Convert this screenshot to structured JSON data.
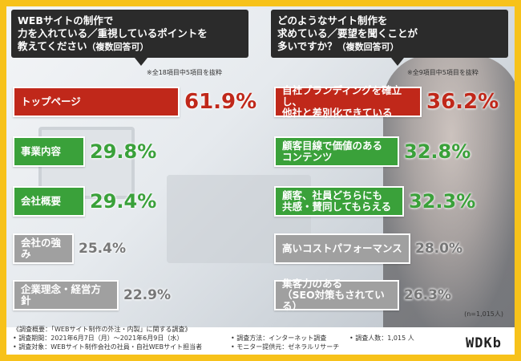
{
  "colors": {
    "top": "#c0281a",
    "high": "#3aa13a",
    "low": "#a0a0a0",
    "frame": "#f7c21a"
  },
  "left_panel": {
    "question": "WEBサイトの制作で\n力を入れている／重視しているポイントを\n教えてください",
    "question_suffix": "（複数回答可）",
    "note": "※全18項目中5項目を抜粋"
  },
  "right_panel": {
    "question": "どのようなサイト制作を\n求めている／要望を聞くことが\n多いですか？",
    "question_suffix": "（複数回答可）",
    "note": "※全9項目中5項目を抜粋"
  },
  "chart_data": [
    {
      "type": "bar",
      "categories": [
        "トップページ",
        "事業内容",
        "会社概要",
        "会社の強み",
        "企業理念・経営方針"
      ],
      "values": [
        61.9,
        29.8,
        29.4,
        25.4,
        22.9
      ],
      "value_labels": [
        "61.9%",
        "29.8%",
        "29.4%",
        "25.4%",
        "22.9%"
      ]
    },
    {
      "type": "bar",
      "categories": [
        "自社ブランディングを確立し、\n他社と差別化できている",
        "顧客目線で価値のある\nコンテンツ",
        "顧客、社員どちらにも\n共感・賛同してもらえる",
        "高いコストパフォーマンス",
        "集客力のある\n（SEO対策もされている）"
      ],
      "values": [
        36.2,
        32.8,
        32.3,
        28.0,
        26.3
      ],
      "value_labels": [
        "36.2%",
        "32.8%",
        "32.3%",
        "28.0%",
        "26.3%"
      ]
    }
  ],
  "sample_size": "(n=1,015人)",
  "survey": {
    "title": "《調査概要：「WEBサイト制作の外注・内製」に関する調査》",
    "period": "• 調査期間：2021年6月7日（月）〜2021年6月9日（水）",
    "target": "• 調査対象：WEBサイト制作会社の社員・自社WEBサイト担当者",
    "method": "• 調査方法：インターネット調査",
    "provider": "• モニター提供元：ゼネラルリサーチ",
    "count": "• 調査人数：1,015 人"
  },
  "logo": "WDKb"
}
